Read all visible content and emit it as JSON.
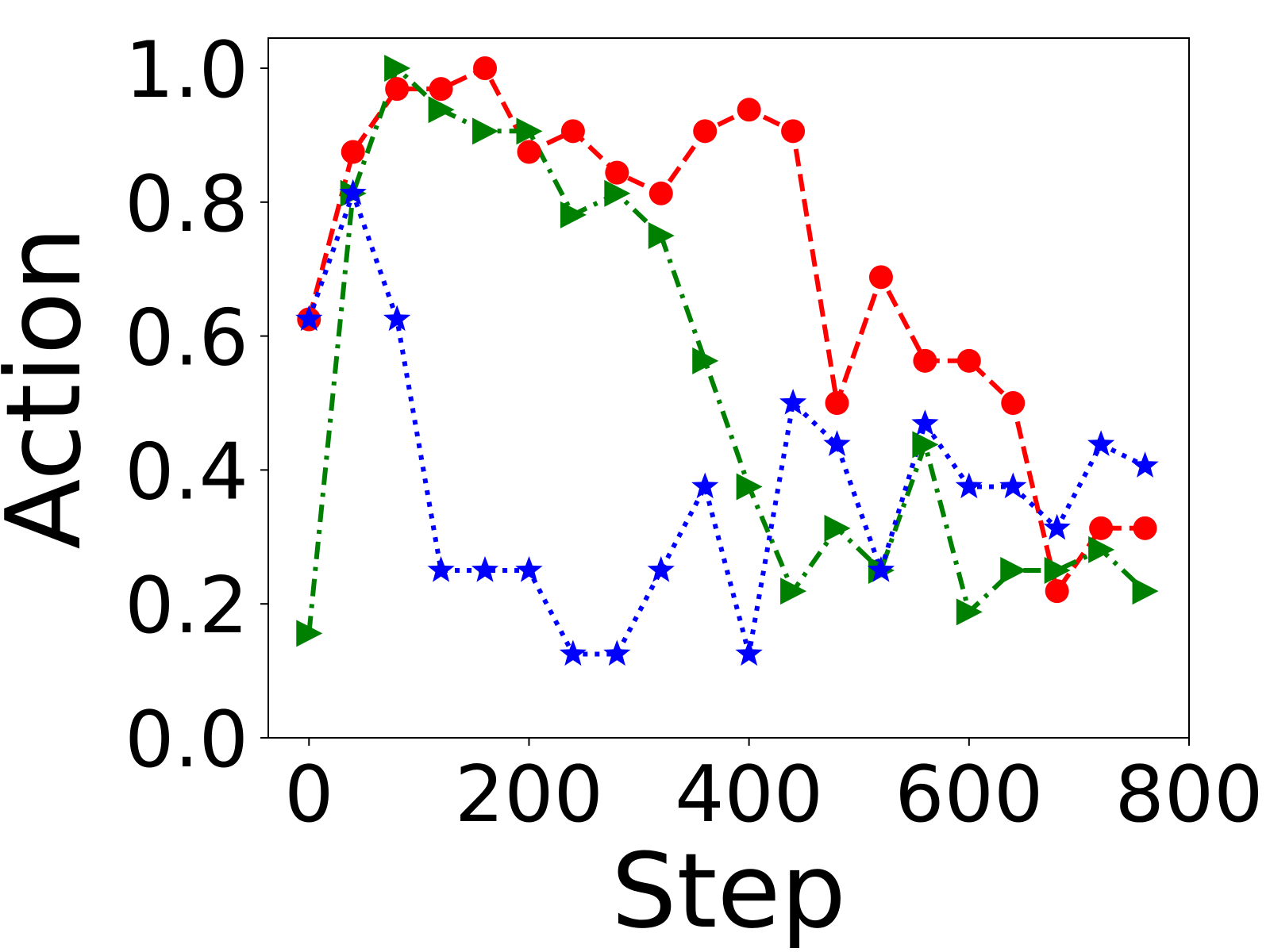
{
  "chart_data": {
    "type": "line",
    "title": "",
    "xlabel": "Step",
    "ylabel": "Action",
    "xlim": [
      -37,
      800
    ],
    "ylim": [
      0.0,
      1.045
    ],
    "xticks": [
      0,
      200,
      400,
      600,
      800
    ],
    "yticks": [
      0.0,
      0.2,
      0.4,
      0.6,
      0.8,
      1.0
    ],
    "xtick_labels": [
      "0",
      "200",
      "400",
      "600",
      "800"
    ],
    "ytick_labels": [
      "0.0",
      "0.2",
      "0.4",
      "0.6",
      "0.8",
      "1.0"
    ],
    "grid": false,
    "legend": "none",
    "x": [
      0,
      40,
      80,
      120,
      160,
      200,
      240,
      280,
      320,
      360,
      400,
      440,
      480,
      520,
      560,
      600,
      640,
      680,
      720,
      760
    ],
    "series": [
      {
        "color": "#ff0000",
        "marker": "circle",
        "linestyle": "dashed",
        "values": [
          0.625,
          0.875,
          0.969,
          0.969,
          1.0,
          0.875,
          0.906,
          0.844,
          0.813,
          0.906,
          0.938,
          0.906,
          0.5,
          0.688,
          0.563,
          0.563,
          0.5,
          0.219,
          0.313,
          0.313
        ]
      },
      {
        "color": "#008000",
        "marker": "triangle-right",
        "linestyle": "dashdot",
        "values": [
          0.156,
          0.813,
          1.0,
          0.938,
          0.906,
          0.906,
          0.781,
          0.813,
          0.75,
          0.563,
          0.375,
          0.219,
          0.313,
          0.25,
          0.438,
          0.188,
          0.25,
          0.25,
          0.281,
          0.219
        ]
      },
      {
        "color": "#0000ff",
        "marker": "star",
        "linestyle": "dotted",
        "values": [
          0.625,
          0.813,
          0.625,
          0.25,
          0.25,
          0.25,
          0.125,
          0.125,
          0.25,
          0.375,
          0.125,
          0.5,
          0.438,
          0.25,
          0.469,
          0.375,
          0.375,
          0.313,
          0.438,
          0.406
        ]
      }
    ]
  }
}
